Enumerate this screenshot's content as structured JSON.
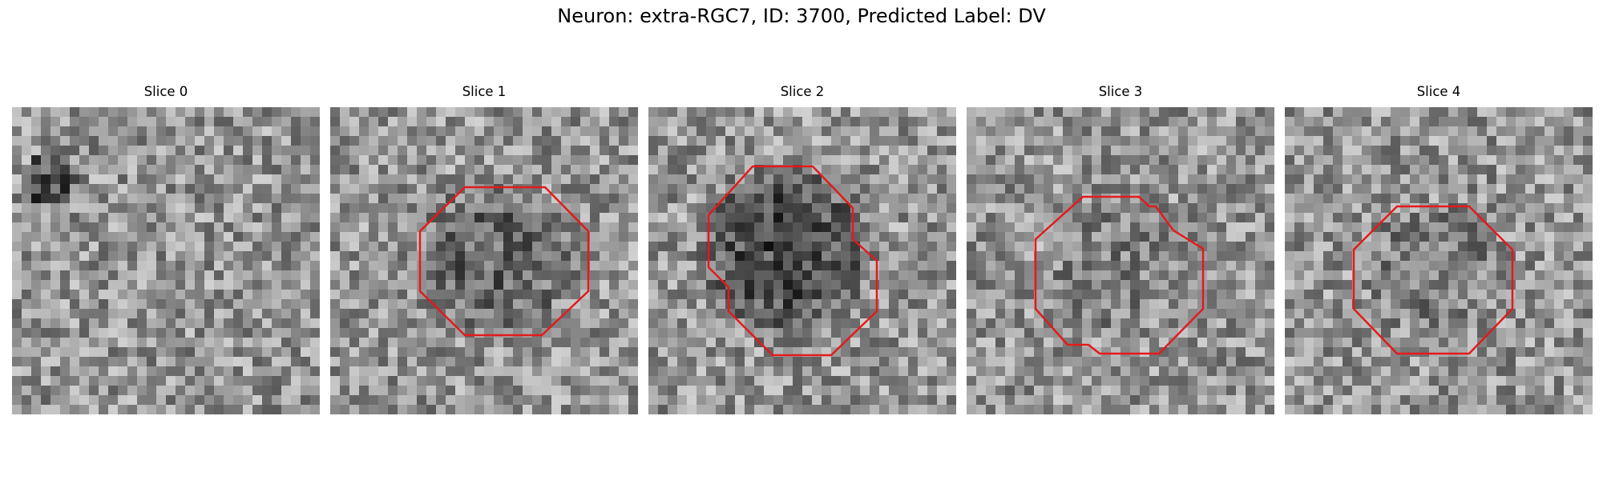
{
  "figure": {
    "title": "Neuron: extra-RGC7, ID: 3700, Predicted Label: DV",
    "slices": [
      {
        "title": "Slice 0",
        "has_roi": false,
        "blob_strength": 0.0
      },
      {
        "title": "Slice 1",
        "has_roi": true,
        "blob_strength": 0.45
      },
      {
        "title": "Slice 2",
        "has_roi": true,
        "blob_strength": 0.7
      },
      {
        "title": "Slice 3",
        "has_roi": true,
        "blob_strength": 0.2
      },
      {
        "title": "Slice 4",
        "has_roi": true,
        "blob_strength": 0.25
      }
    ],
    "roi_color": "#e31a1c"
  }
}
